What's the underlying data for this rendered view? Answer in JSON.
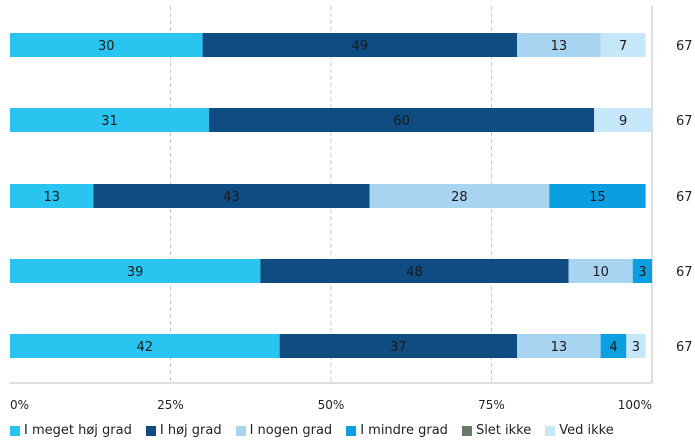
{
  "chart_data": {
    "type": "bar",
    "orientation": "horizontal",
    "stacked": true,
    "xlim": [
      0,
      100
    ],
    "x_ticks": [
      "0%",
      "25%",
      "50%",
      "75%",
      "100%"
    ],
    "grid": true,
    "legend_position": "bottom",
    "rows": [
      {
        "n": "67",
        "values": [
          30,
          49,
          13,
          0,
          0,
          7
        ],
        "labels": [
          "30",
          "49",
          "13",
          "",
          "",
          "7"
        ]
      },
      {
        "n": "67",
        "values": [
          31,
          60,
          0,
          0,
          0,
          9
        ],
        "labels": [
          "31",
          "60",
          "",
          "",
          "",
          "9"
        ]
      },
      {
        "n": "67",
        "values": [
          13,
          43,
          28,
          15,
          0,
          0
        ],
        "labels": [
          "13",
          "43",
          "28",
          "15",
          "",
          ""
        ]
      },
      {
        "n": "67",
        "values": [
          39,
          48,
          10,
          3,
          0,
          0
        ],
        "labels": [
          "39",
          "48",
          "10",
          "3",
          "",
          ""
        ]
      },
      {
        "n": "67",
        "values": [
          42,
          37,
          13,
          4,
          0,
          3
        ],
        "labels": [
          "42",
          "37",
          "13",
          "4",
          "",
          "3"
        ]
      }
    ],
    "series": [
      {
        "name": "I meget høj grad",
        "color": "#29c4f0",
        "text_color": "#1a1a1a"
      },
      {
        "name": "I høj grad",
        "color": "#0f4c81",
        "text_color": "#1a1a1a"
      },
      {
        "name": "I nogen grad",
        "color": "#a8d4f2",
        "text_color": "#1a1a1a"
      },
      {
        "name": "I mindre grad",
        "color": "#0b9ee0",
        "text_color": "#1a1a1a"
      },
      {
        "name": "Slet ikke",
        "color": "#6d7a6a",
        "text_color": "#1a1a1a"
      },
      {
        "name": "Ved ikke",
        "color": "#c6e7fa",
        "text_color": "#1a1a1a"
      }
    ]
  }
}
